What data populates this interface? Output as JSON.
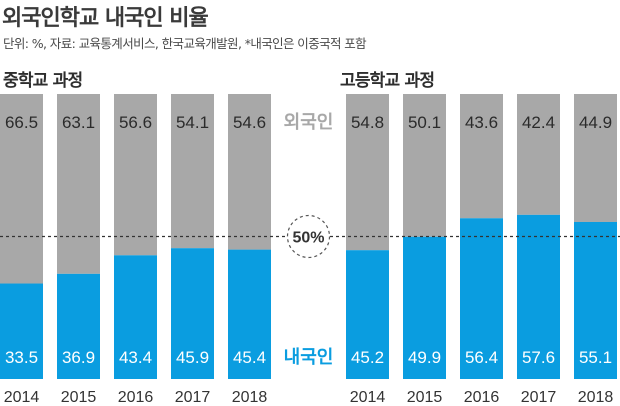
{
  "title": "외국인학교 내국인 비율",
  "source": "단위: %, 자료: 교육통계서비스, 한국교육개발원, *내국인은 이중국적 포함",
  "center_labels": {
    "foreign": "외국인",
    "domestic": "내국인",
    "threshold": "50%"
  },
  "colors": {
    "foreign": "#a8a8a8",
    "domestic": "#0a9de0",
    "value_dark": "#2b2b2b",
    "value_light": "#ffffff"
  },
  "chart_data": [
    {
      "type": "bar",
      "stacked": true,
      "title": "중학교 과정",
      "categories": [
        "2014",
        "2015",
        "2016",
        "2017",
        "2018"
      ],
      "series": [
        {
          "name": "내국인",
          "values": [
            33.5,
            36.9,
            43.4,
            45.9,
            45.4
          ]
        },
        {
          "name": "외국인",
          "values": [
            66.5,
            63.1,
            56.6,
            54.1,
            54.6
          ]
        }
      ],
      "ylim": [
        0,
        100
      ],
      "reference_line": 50
    },
    {
      "type": "bar",
      "stacked": true,
      "title": "고등학교 과정",
      "categories": [
        "2014",
        "2015",
        "2016",
        "2017",
        "2018"
      ],
      "series": [
        {
          "name": "내국인",
          "values": [
            45.2,
            49.9,
            56.4,
            57.6,
            55.1
          ]
        },
        {
          "name": "외국인",
          "values": [
            54.8,
            50.1,
            43.6,
            42.4,
            44.9
          ]
        }
      ],
      "ylim": [
        0,
        100
      ],
      "reference_line": 50
    }
  ]
}
